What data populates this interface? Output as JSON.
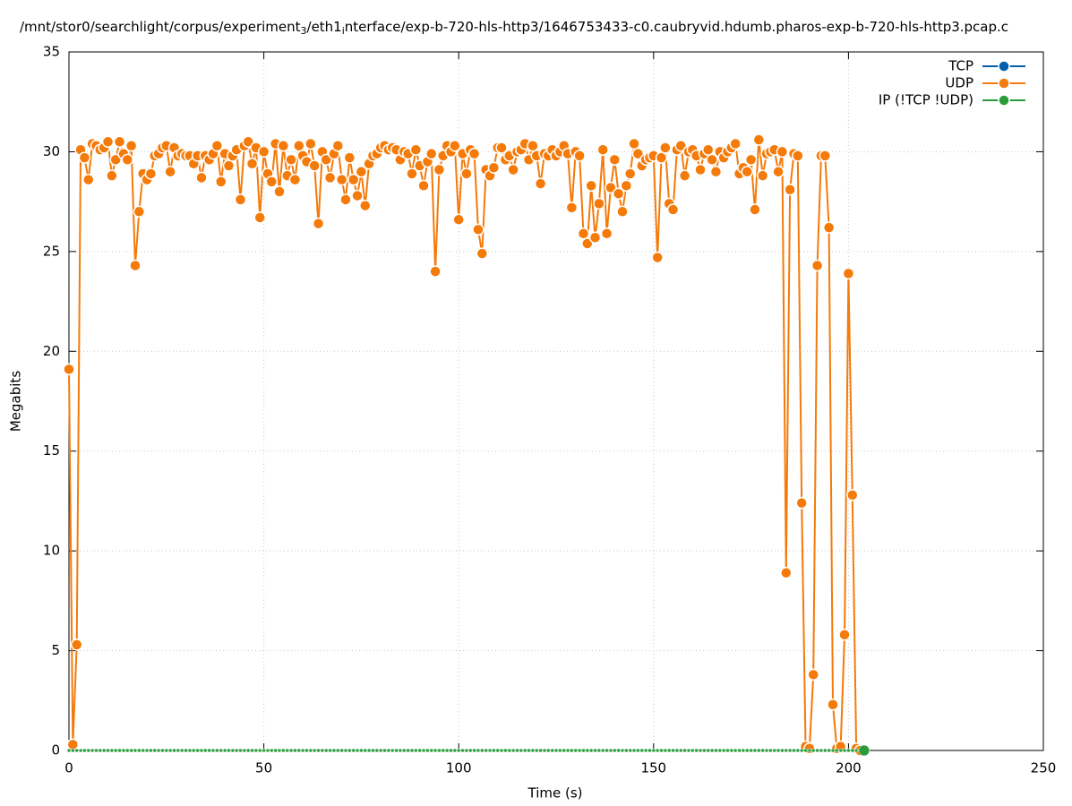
{
  "chart_data": {
    "type": "line",
    "title": [
      "/mnt/stor0/searchlight/corpus/experiment",
      "3",
      "/eth1",
      "i",
      "nterface/exp-b-720-hls-http3/1646753433-c0.caubryvid.hdumb.pharos-exp-b-720-hls-http3.pcap.c"
    ],
    "xlabel": "Time (s)",
    "ylabel": "Megabits",
    "xlim": [
      0,
      250
    ],
    "xticks": [
      0,
      50,
      100,
      150,
      200,
      250
    ],
    "ylim": [
      0,
      35
    ],
    "yticks": [
      0,
      5,
      10,
      15,
      20,
      25,
      30,
      35
    ],
    "grid": true,
    "legend": "top-right",
    "x": [
      0,
      1,
      2,
      3,
      4,
      5,
      6,
      7,
      8,
      9,
      10,
      11,
      12,
      13,
      14,
      15,
      16,
      17,
      18,
      19,
      20,
      21,
      22,
      23,
      24,
      25,
      26,
      27,
      28,
      29,
      30,
      31,
      32,
      33,
      34,
      35,
      36,
      37,
      38,
      39,
      40,
      41,
      42,
      43,
      44,
      45,
      46,
      47,
      48,
      49,
      50,
      51,
      52,
      53,
      54,
      55,
      56,
      57,
      58,
      59,
      60,
      61,
      62,
      63,
      64,
      65,
      66,
      67,
      68,
      69,
      70,
      71,
      72,
      73,
      74,
      75,
      76,
      77,
      78,
      79,
      80,
      81,
      82,
      83,
      84,
      85,
      86,
      87,
      88,
      89,
      90,
      91,
      92,
      93,
      94,
      95,
      96,
      97,
      98,
      99,
      100,
      101,
      102,
      103,
      104,
      105,
      106,
      107,
      108,
      109,
      110,
      111,
      112,
      113,
      114,
      115,
      116,
      117,
      118,
      119,
      120,
      121,
      122,
      123,
      124,
      125,
      126,
      127,
      128,
      129,
      130,
      131,
      132,
      133,
      134,
      135,
      136,
      137,
      138,
      139,
      140,
      141,
      142,
      143,
      144,
      145,
      146,
      147,
      148,
      149,
      150,
      151,
      152,
      153,
      154,
      155,
      156,
      157,
      158,
      159,
      160,
      161,
      162,
      163,
      164,
      165,
      166,
      167,
      168,
      169,
      170,
      171,
      172,
      173,
      174,
      175,
      176,
      177,
      178,
      179,
      180,
      181,
      182,
      183,
      184,
      185,
      186,
      187,
      188,
      189,
      190,
      191,
      192,
      193,
      194,
      195,
      196,
      197,
      198,
      199,
      200,
      201,
      202,
      203,
      204
    ],
    "series": [
      {
        "name": "TCP",
        "color": "#0060ad",
        "values": [
          0,
          0,
          0,
          0,
          0,
          0,
          0,
          0,
          0,
          0,
          0,
          0,
          0,
          0,
          0,
          0,
          0,
          0,
          0,
          0,
          0,
          0,
          0,
          0,
          0,
          0,
          0,
          0,
          0,
          0,
          0,
          0,
          0,
          0,
          0,
          0,
          0,
          0,
          0,
          0,
          0,
          0,
          0,
          0,
          0,
          0,
          0,
          0,
          0,
          0,
          0,
          0,
          0,
          0,
          0,
          0,
          0,
          0,
          0,
          0,
          0,
          0,
          0,
          0,
          0,
          0,
          0,
          0,
          0,
          0,
          0,
          0,
          0,
          0,
          0,
          0,
          0,
          0,
          0,
          0,
          0,
          0,
          0,
          0,
          0,
          0,
          0,
          0,
          0,
          0,
          0,
          0,
          0,
          0,
          0,
          0,
          0,
          0,
          0,
          0,
          0,
          0,
          0,
          0,
          0,
          0,
          0,
          0,
          0,
          0,
          0,
          0,
          0,
          0,
          0,
          0,
          0,
          0,
          0,
          0,
          0,
          0,
          0,
          0,
          0,
          0,
          0,
          0,
          0,
          0,
          0,
          0,
          0,
          0,
          0,
          0,
          0,
          0,
          0,
          0,
          0,
          0,
          0,
          0,
          0,
          0,
          0,
          0,
          0,
          0,
          0,
          0,
          0,
          0,
          0,
          0,
          0,
          0,
          0,
          0,
          0,
          0,
          0,
          0,
          0,
          0,
          0,
          0,
          0,
          0,
          0,
          0,
          0,
          0,
          0,
          0,
          0,
          0,
          0,
          0,
          0,
          0,
          0,
          0,
          0,
          0,
          0,
          0,
          0,
          0,
          0,
          0,
          0,
          0,
          0,
          0,
          0,
          0,
          0,
          0,
          0,
          0,
          0,
          0,
          0
        ]
      },
      {
        "name": "UDP",
        "color": "#f47a0a",
        "values": [
          19.1,
          0.3,
          5.3,
          30.1,
          29.7,
          28.6,
          30.4,
          30.3,
          30.1,
          30.2,
          30.5,
          28.8,
          29.6,
          30.5,
          29.9,
          29.6,
          30.3,
          24.3,
          27.0,
          28.9,
          28.6,
          28.9,
          29.8,
          29.9,
          30.2,
          30.3,
          29.0,
          30.2,
          29.8,
          29.9,
          29.8,
          29.8,
          29.4,
          29.8,
          28.7,
          29.8,
          29.6,
          29.9,
          30.3,
          28.5,
          29.9,
          29.3,
          29.8,
          30.1,
          27.6,
          30.3,
          30.5,
          29.4,
          30.2,
          26.7,
          30.0,
          28.9,
          28.5,
          30.4,
          28.0,
          30.3,
          28.8,
          29.6,
          28.6,
          30.3,
          29.8,
          29.5,
          30.4,
          29.3,
          26.4,
          30.0,
          29.6,
          28.7,
          29.9,
          30.3,
          28.6,
          27.6,
          29.7,
          28.6,
          27.8,
          29.0,
          27.3,
          29.4,
          29.8,
          29.9,
          30.2,
          30.3,
          30.1,
          30.2,
          30.1,
          29.6,
          30.0,
          29.9,
          28.9,
          30.1,
          29.3,
          28.3,
          29.5,
          29.9,
          24.0,
          29.1,
          29.8,
          30.3,
          30.0,
          30.3,
          26.6,
          29.9,
          28.9,
          30.1,
          29.9,
          26.1,
          24.9,
          29.1,
          28.8,
          29.2,
          30.2,
          30.2,
          29.6,
          29.8,
          29.1,
          30.0,
          30.1,
          30.4,
          29.6,
          30.3,
          29.8,
          28.4,
          29.9,
          29.8,
          30.1,
          29.8,
          30.0,
          30.3,
          29.9,
          27.2,
          30.0,
          29.8,
          25.9,
          25.4,
          28.3,
          25.7,
          27.4,
          30.1,
          25.9,
          28.2,
          29.6,
          27.9,
          27.0,
          28.3,
          28.9,
          30.4,
          29.9,
          29.3,
          29.6,
          29.7,
          29.8,
          24.7,
          29.7,
          30.2,
          27.4,
          27.1,
          30.1,
          30.3,
          28.8,
          30.0,
          30.1,
          29.8,
          29.1,
          29.9,
          30.1,
          29.6,
          29.0,
          30.0,
          29.7,
          30.0,
          30.2,
          30.4,
          28.9,
          29.2,
          29.0,
          29.6,
          27.1,
          30.6,
          28.8,
          29.9,
          30.0,
          30.1,
          29.0,
          30.0,
          8.9,
          28.1,
          29.9,
          29.8,
          12.4,
          0.2,
          0.1,
          3.8,
          24.3,
          29.8,
          29.8,
          26.2,
          2.3,
          0.1,
          0.2,
          5.8,
          23.9,
          12.8,
          0.1,
          0,
          null
        ]
      },
      {
        "name": "IP (!TCP  !UDP)",
        "color": "#2a9d3a",
        "values": [
          0,
          0,
          0,
          0,
          0,
          0,
          0,
          0,
          0,
          0,
          0,
          0,
          0,
          0,
          0,
          0,
          0,
          0,
          0,
          0,
          0,
          0,
          0,
          0,
          0,
          0,
          0,
          0,
          0,
          0,
          0,
          0,
          0,
          0,
          0,
          0,
          0,
          0,
          0,
          0,
          0,
          0,
          0,
          0,
          0,
          0,
          0,
          0,
          0,
          0,
          0,
          0,
          0,
          0,
          0,
          0,
          0,
          0,
          0,
          0,
          0,
          0,
          0,
          0,
          0,
          0,
          0,
          0,
          0,
          0,
          0,
          0,
          0,
          0,
          0,
          0,
          0,
          0,
          0,
          0,
          0,
          0,
          0,
          0,
          0,
          0,
          0,
          0,
          0,
          0,
          0,
          0,
          0,
          0,
          0,
          0,
          0,
          0,
          0,
          0,
          0,
          0,
          0,
          0,
          0,
          0,
          0,
          0,
          0,
          0,
          0,
          0,
          0,
          0,
          0,
          0,
          0,
          0,
          0,
          0,
          0,
          0,
          0,
          0,
          0,
          0,
          0,
          0,
          0,
          0,
          0,
          0,
          0,
          0,
          0,
          0,
          0,
          0,
          0,
          0,
          0,
          0,
          0,
          0,
          0,
          0,
          0,
          0,
          0,
          0,
          0,
          0,
          0,
          0,
          0,
          0,
          0,
          0,
          0,
          0,
          0,
          0,
          0,
          0,
          0,
          0,
          0,
          0,
          0,
          0,
          0,
          0,
          0,
          0,
          0,
          0,
          0,
          0,
          0,
          0,
          0,
          0,
          0,
          0,
          0,
          0,
          0,
          0,
          0,
          0,
          0,
          0,
          0,
          0,
          0,
          0,
          0,
          0,
          0,
          0,
          0,
          0,
          0,
          0,
          0
        ]
      }
    ]
  }
}
